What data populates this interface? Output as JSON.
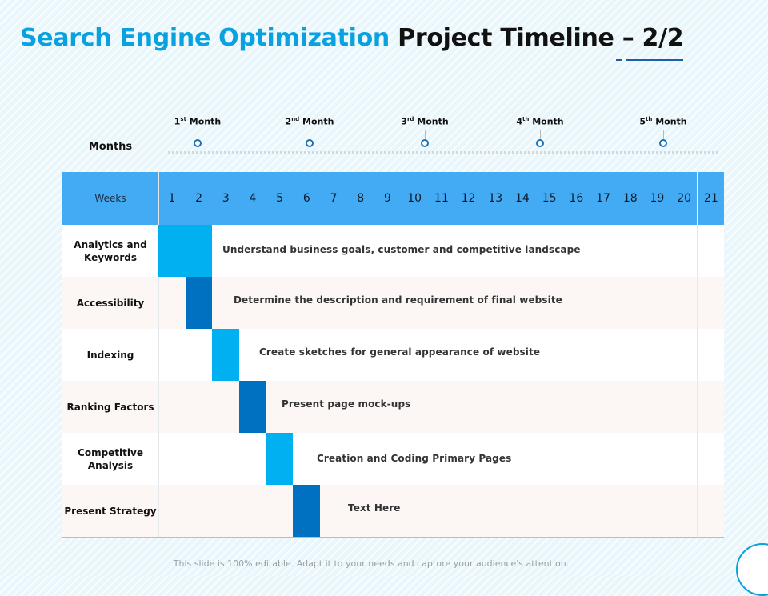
{
  "title": {
    "highlight": "Search Engine Optimization",
    "rest": "Project Timeline – 2/2"
  },
  "months_label": "Months",
  "months": [
    {
      "num": "1",
      "sup": "st",
      "word": "Month"
    },
    {
      "num": "2",
      "sup": "nd",
      "word": "Month"
    },
    {
      "num": "3",
      "sup": "rd",
      "word": "Month"
    },
    {
      "num": "4",
      "sup": "th",
      "word": "Month"
    },
    {
      "num": "5",
      "sup": "th",
      "word": "Month"
    }
  ],
  "weeks_label": "Weeks",
  "weeks": [
    "1",
    "2",
    "3",
    "4",
    "5",
    "6",
    "7",
    "8",
    "9",
    "10",
    "11",
    "12",
    "13",
    "14",
    "15",
    "16",
    "17",
    "18",
    "19",
    "20",
    "21"
  ],
  "rows": [
    {
      "label": "Analytics and Keywords",
      "task": "Understand business goals, customer and competitive landscape"
    },
    {
      "label": "Accessibility",
      "task": "Determine the description and requirement of final website"
    },
    {
      "label": "Indexing",
      "task": "Create sketches for general appearance of website"
    },
    {
      "label": "Ranking Factors",
      "task": "Present page mock-ups"
    },
    {
      "label": "Competitive Analysis",
      "task": "Creation and Coding Primary Pages"
    },
    {
      "label": "Present Strategy",
      "task": "Text Here"
    }
  ],
  "bar_colors": {
    "light": "#00b0f0",
    "dark": "#0070c0"
  },
  "footer": "This slide is 100% editable. Adapt it to your needs and capture your audience's attention."
}
